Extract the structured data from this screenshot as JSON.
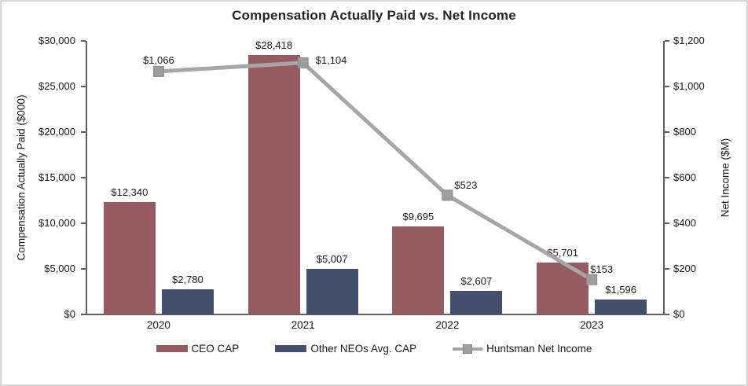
{
  "chart_data": {
    "type": "combo-bar-line",
    "title": "Compensation Actually Paid vs. Net Income",
    "categories": [
      "2020",
      "2021",
      "2022",
      "2023"
    ],
    "series": [
      {
        "name": "CEO CAP",
        "type": "bar",
        "axis": "left",
        "color": "#965a61",
        "values": [
          12340,
          28418,
          9695,
          5701
        ],
        "labels": [
          "$12,340",
          "$28,418",
          "$9,695",
          "$5,701"
        ]
      },
      {
        "name": "Other NEOs Avg. CAP",
        "type": "bar",
        "axis": "left",
        "color": "#44506b",
        "values": [
          2780,
          5007,
          2607,
          1596
        ],
        "labels": [
          "$2,780",
          "$5,007",
          "$2,607",
          "$1,596"
        ]
      },
      {
        "name": "Huntsman Net Income",
        "type": "line",
        "axis": "right",
        "color": "#a6a6a6",
        "marker_color": "#9d9d9d",
        "values": [
          1066,
          1104,
          523,
          153
        ],
        "labels": [
          "$1,066",
          "$1,104",
          "$523",
          "$153"
        ]
      }
    ],
    "left_axis": {
      "title": "Compensation Actually Paid ($000)",
      "min": 0,
      "max": 30000,
      "tick_labels": [
        "$0",
        "$5,000",
        "$10,000",
        "$15,000",
        "$20,000",
        "$25,000",
        "$30,000"
      ]
    },
    "right_axis": {
      "title": "Net Income ($M)",
      "min": 0,
      "max": 1200,
      "tick_labels": [
        "$0",
        "$200",
        "$400",
        "$600",
        "$800",
        "$1,000",
        "$1,200"
      ]
    },
    "axis_color": "#606060",
    "legend_position": "bottom",
    "grid": false
  }
}
